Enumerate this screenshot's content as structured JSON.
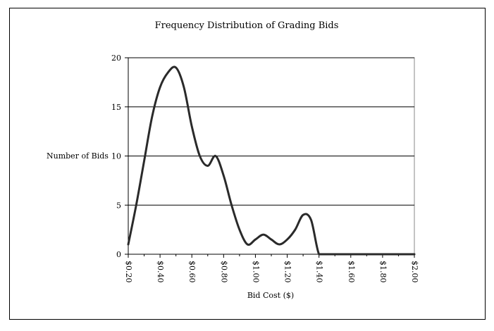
{
  "chart_data": {
    "type": "line",
    "title": "Frequency Distribution of Grading Bids",
    "xlabel": "Bid Cost ($)",
    "ylabel": "Number of Bids",
    "ylim": [
      0,
      20
    ],
    "yticks": [
      "0",
      "5",
      "10",
      "15",
      "20"
    ],
    "categories": [
      "$0.20",
      "$0.40",
      "$0.60",
      "$0.80",
      "$1.00",
      "$1.20",
      "$1.40",
      "$1.60",
      "$1.80",
      "$2.00"
    ],
    "grid": true,
    "series": [
      {
        "x": [
          0.2,
          0.25,
          0.3,
          0.35,
          0.4,
          0.45,
          0.5,
          0.55,
          0.6,
          0.65,
          0.7,
          0.75,
          0.8,
          0.85,
          0.9,
          0.95,
          1.0,
          1.05,
          1.1,
          1.15,
          1.2,
          1.25,
          1.3,
          1.35,
          1.4,
          1.45,
          1.5,
          1.55,
          1.6,
          1.65,
          1.7,
          1.75,
          1.8,
          1.85,
          1.9,
          1.95,
          2.0
        ],
        "values": [
          1,
          5,
          9.5,
          14,
          17,
          18.5,
          19,
          17,
          13,
          10,
          9,
          10,
          8,
          5,
          2.5,
          1,
          1.5,
          2,
          1.5,
          1,
          1.5,
          2.5,
          4,
          3.5,
          0,
          0,
          0,
          0,
          0,
          0,
          0,
          0,
          0,
          0,
          0,
          0,
          0
        ]
      }
    ]
  }
}
